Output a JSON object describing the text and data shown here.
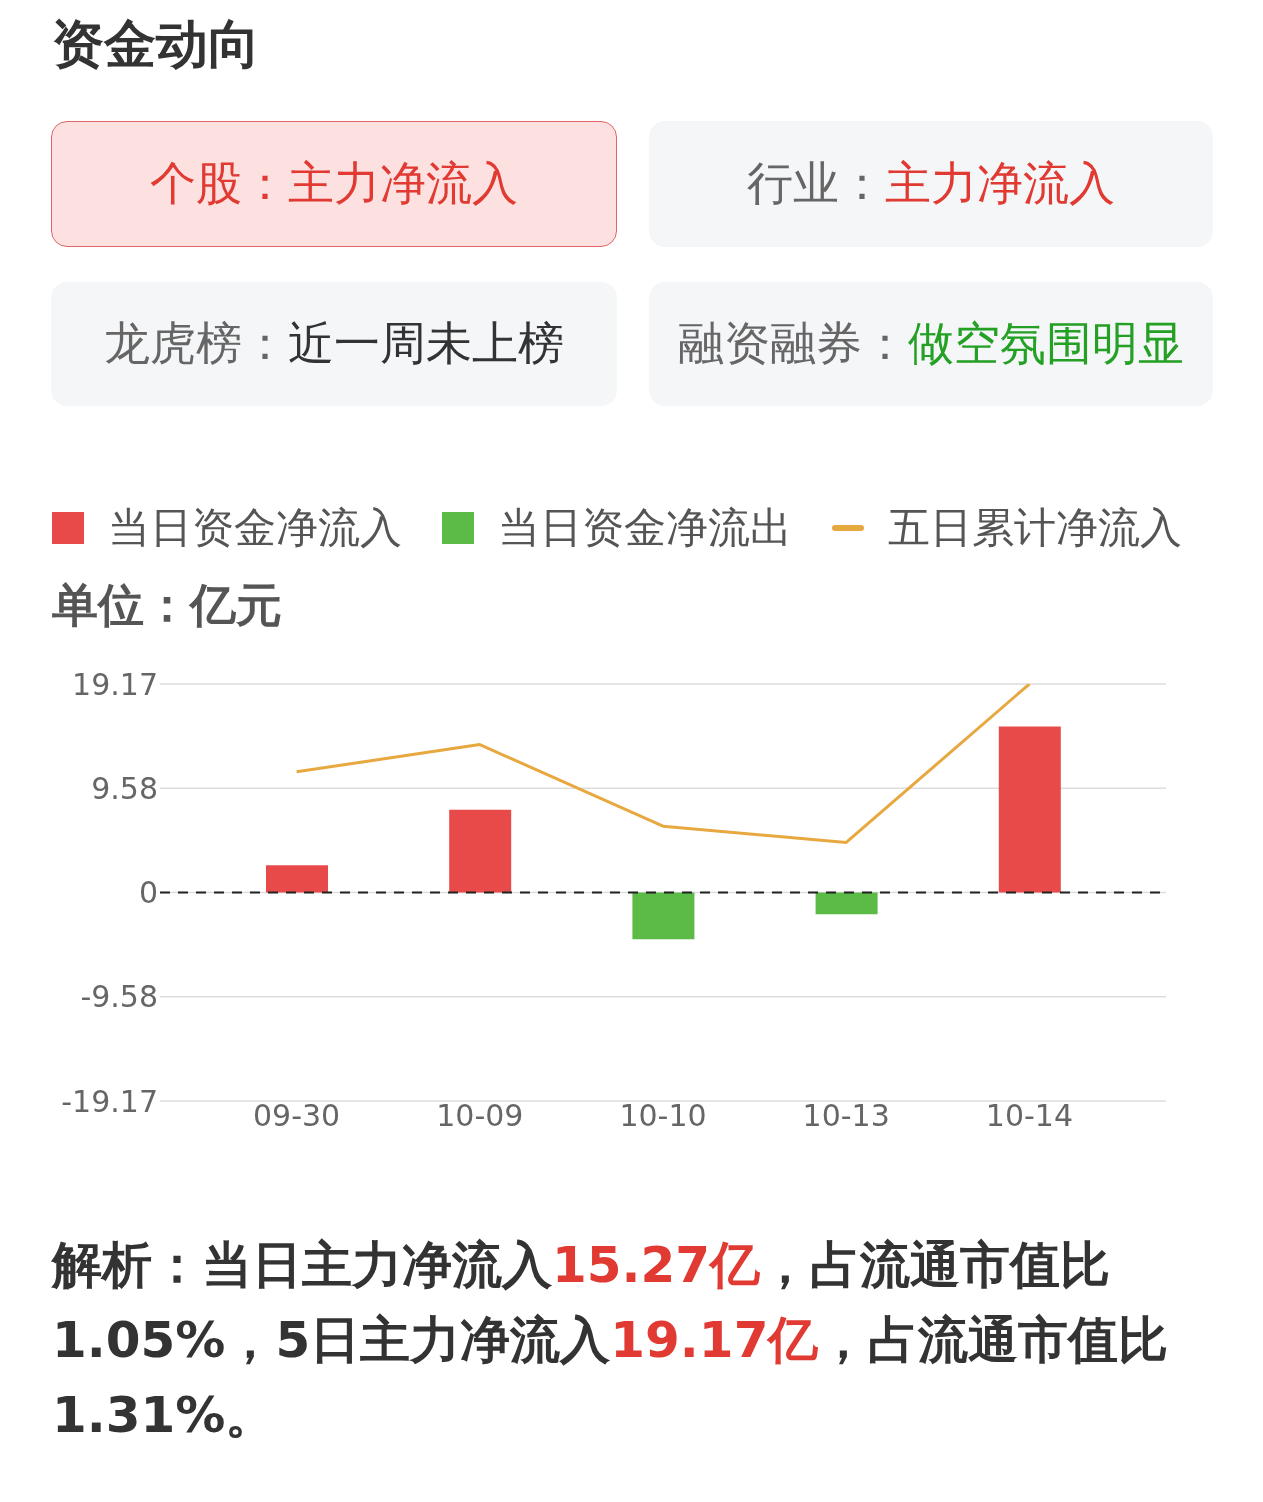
{
  "chart_data": {
    "type": "bar",
    "title": "资金动向",
    "ylabel": "单位：亿元",
    "annotations": [
      "个股：主力净流入",
      "行业：主力净流入",
      "龙虎榜：近一周未上榜",
      "融资融券：做空氛围明显",
      "解析：当日主力净流入15.27亿，占流通市值比1.05%，5日主力净流入19.17亿，占流通市值比1.31%。"
    ],
    "categories": [
      "09-30",
      "10-09",
      "10-10",
      "10-13",
      "10-14"
    ],
    "series": [
      {
        "name": "当日资金净流入",
        "color": "#e84a4a",
        "values": [
          2.5,
          7.6,
          null,
          null,
          15.27
        ]
      },
      {
        "name": "当日资金净流出",
        "color": "#5cbb46",
        "values": [
          null,
          null,
          -4.3,
          -2.0,
          null
        ]
      },
      {
        "name": "五日累计净流入",
        "type": "line",
        "color": "#e8a840",
        "values": [
          11.1,
          13.6,
          6.1,
          4.6,
          19.17
        ]
      }
    ],
    "stacked": true,
    "ylim": [
      -19.17,
      19.17
    ],
    "yticks": [
      -19.17,
      -9.58,
      0,
      9.58,
      19.17
    ],
    "grid": "y",
    "legend": "top",
    "ref_lines": [
      {
        "axis": "y",
        "value": 0,
        "color": "#222222",
        "line_style": "dashed"
      }
    ]
  }
}
